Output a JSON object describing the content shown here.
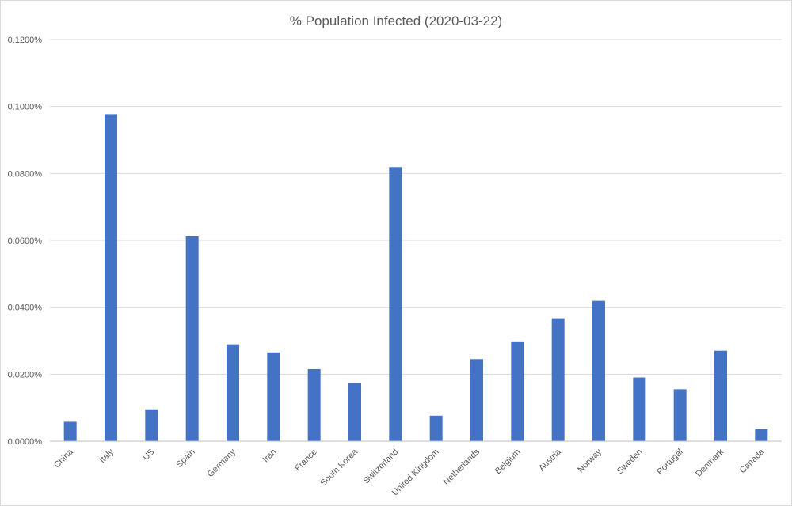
{
  "chart_data": {
    "type": "bar",
    "title": "% Population Infected (2020-03-22)",
    "xlabel": "",
    "ylabel": "",
    "ylim": [
      0,
      0.12
    ],
    "y_ticks": [
      0,
      0.02,
      0.04,
      0.06,
      0.08,
      0.1,
      0.12
    ],
    "y_tick_labels": [
      "0.0000%",
      "0.0200%",
      "0.0400%",
      "0.0600%",
      "0.0800%",
      "0.1000%",
      "0.1200%"
    ],
    "grid": true,
    "legend": "none",
    "color": "#4472c4",
    "categories": [
      "China",
      "Italy",
      "US",
      "Spain",
      "Germany",
      "Iran",
      "France",
      "South Korea",
      "Switzerland",
      "United Kingdom",
      "Netherlands",
      "Belgium",
      "Austria",
      "Norway",
      "Sweden",
      "Portugal",
      "Denmark",
      "Canada"
    ],
    "values": [
      0.0058,
      0.0977,
      0.0095,
      0.0612,
      0.0289,
      0.0265,
      0.0215,
      0.0173,
      0.0819,
      0.0076,
      0.0245,
      0.0298,
      0.0367,
      0.0419,
      0.019,
      0.0155,
      0.027,
      0.0036
    ]
  }
}
